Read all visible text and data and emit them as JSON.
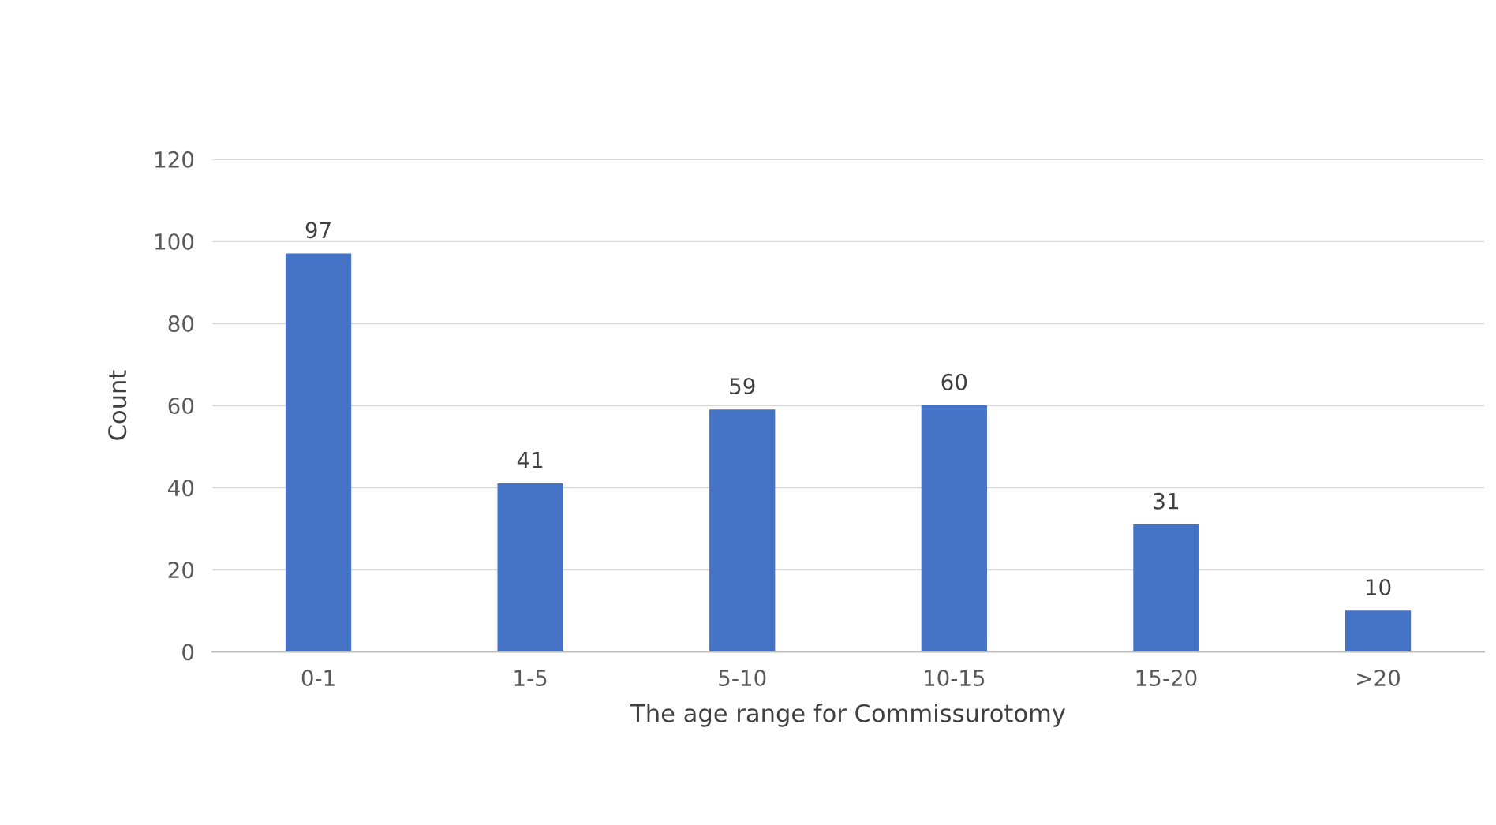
{
  "chart_data": {
    "type": "bar",
    "xlabel": "The age range for Commissurotomy",
    "ylabel": "Count",
    "categories": [
      "0-1",
      "1-5",
      "5-10",
      "10-15",
      "15-20",
      ">20"
    ],
    "values": [
      97,
      41,
      59,
      60,
      31,
      10
    ],
    "color": "#4472c4",
    "ylim": [
      0,
      120
    ],
    "yticks": [
      0,
      20,
      40,
      60,
      80,
      100,
      120
    ],
    "grid": "y",
    "data_labels": true
  }
}
